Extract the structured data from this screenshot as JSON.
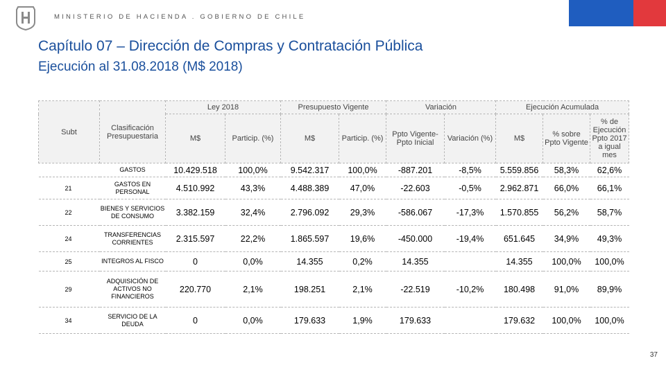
{
  "header": {
    "ministry": "MINISTERIO DE HACIENDA . GOBIERNO DE CHILE",
    "logo_letter": "H"
  },
  "title": "Capítulo 07 – Dirección de Compras y Contratación Pública",
  "subtitle": "Ejecución al 31.08.2018 (M$ 2018)",
  "table": {
    "group_headers": {
      "subt": "Subt",
      "clasificacion": "Clasificación Presupuestaria",
      "ley": "Ley 2018",
      "vigente": "Presupuesto Vigente",
      "variacion": "Variación",
      "ejecucion": "Ejecución Acumulada"
    },
    "sub_headers": {
      "ley_ms": "M$",
      "ley_particip": "Particip. (%)",
      "vig_ms": "M$",
      "vig_particip": "Particip. (%)",
      "var_diff": "Ppto Vigente- Ppto Inicial",
      "var_pct": "Variación (%)",
      "ej_ms": "M$",
      "ej_pct_vigente": "% sobre Ppto Vigente",
      "ej_pct_2017": "% de Ejecución Ppto 2017 a igual mes"
    },
    "rows": [
      {
        "subt": "",
        "clas": "GASTOS",
        "ley_ms": "10.429.518",
        "ley_part": "100,0%",
        "vig_ms": "9.542.317",
        "vig_part": "100,0%",
        "var_diff": "-887.201",
        "var_pct": "-8,5%",
        "ej_ms": "5.559.856",
        "ej_vig": "58,3%",
        "ej_2017": "62,6%"
      },
      {
        "subt": "21",
        "clas": "GASTOS EN PERSONAL",
        "ley_ms": "4.510.992",
        "ley_part": "43,3%",
        "vig_ms": "4.488.389",
        "vig_part": "47,0%",
        "var_diff": "-22.603",
        "var_pct": "-0,5%",
        "ej_ms": "2.962.871",
        "ej_vig": "66,0%",
        "ej_2017": "66,1%"
      },
      {
        "subt": "22",
        "clas": "BIENES Y SERVICIOS DE CONSUMO",
        "ley_ms": "3.382.159",
        "ley_part": "32,4%",
        "vig_ms": "2.796.092",
        "vig_part": "29,3%",
        "var_diff": "-586.067",
        "var_pct": "-17,3%",
        "ej_ms": "1.570.855",
        "ej_vig": "56,2%",
        "ej_2017": "58,7%"
      },
      {
        "subt": "24",
        "clas": "TRANSFERENCIAS CORRIENTES",
        "ley_ms": "2.315.597",
        "ley_part": "22,2%",
        "vig_ms": "1.865.597",
        "vig_part": "19,6%",
        "var_diff": "-450.000",
        "var_pct": "-19,4%",
        "ej_ms": "651.645",
        "ej_vig": "34,9%",
        "ej_2017": "49,3%"
      },
      {
        "subt": "25",
        "clas": "INTEGROS AL FISCO",
        "ley_ms": "0",
        "ley_part": "0,0%",
        "vig_ms": "14.355",
        "vig_part": "0,2%",
        "var_diff": "14.355",
        "var_pct": "",
        "ej_ms": "14.355",
        "ej_vig": "100,0%",
        "ej_2017": "100,0%"
      },
      {
        "subt": "29",
        "clas": "ADQUISICIÓN DE ACTIVOS NO FINANCIEROS",
        "ley_ms": "220.770",
        "ley_part": "2,1%",
        "vig_ms": "198.251",
        "vig_part": "2,1%",
        "var_diff": "-22.519",
        "var_pct": "-10,2%",
        "ej_ms": "180.498",
        "ej_vig": "91,0%",
        "ej_2017": "89,9%"
      },
      {
        "subt": "34",
        "clas": "SERVICIO DE LA DEUDA",
        "ley_ms": "0",
        "ley_part": "0,0%",
        "vig_ms": "179.633",
        "vig_part": "1,9%",
        "var_diff": "179.633",
        "var_pct": "",
        "ej_ms": "179.632",
        "ej_vig": "100,0%",
        "ej_2017": "100,0%"
      }
    ]
  },
  "page_number": "37",
  "colors": {
    "title": "#1a4f9c",
    "flag_blue": "#1f5dbf",
    "flag_red": "#e2393d"
  }
}
